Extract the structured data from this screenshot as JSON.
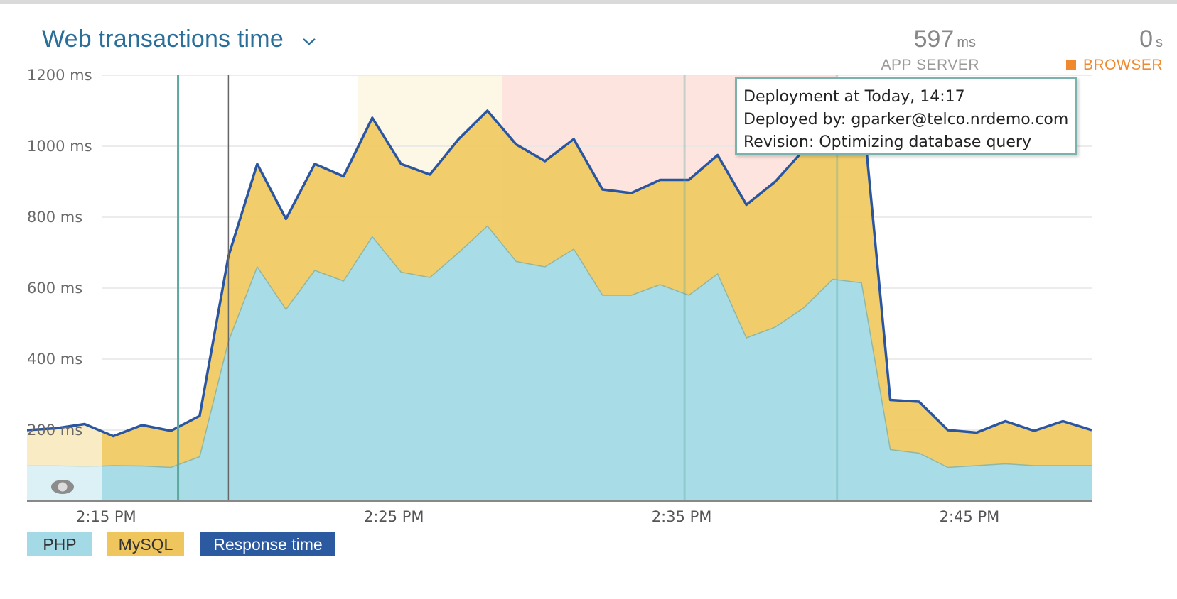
{
  "header": {
    "title": "Web transactions time",
    "app_server": {
      "value": "597",
      "unit": "ms",
      "label": "APP SERVER"
    },
    "browser": {
      "value": "0",
      "unit": "s",
      "label": "BROWSER"
    }
  },
  "tooltip": {
    "line1": "Deployment at Today, 14:17",
    "line2": "Deployed by: gparker@telco.nrdemo.com",
    "line3": "Revision: Optimizing database query"
  },
  "legend": {
    "php": "PHP",
    "mysql": "MySQL",
    "response": "Response time"
  },
  "colors": {
    "php": "#a8dce7",
    "mysql": "#f0ca64",
    "response": "#2a55a0",
    "highlight_yellow": "#fdf7e6",
    "highlight_red": "#fde4df",
    "deploy_marker": "#5ea8a0",
    "browser": "#f0892d",
    "title": "#2a6e9a"
  },
  "chart_data": {
    "type": "area",
    "ylim": [
      0,
      1200
    ],
    "y_ticks": [
      "1200 ms",
      "1000 ms",
      "800 ms",
      "600 ms",
      "400 ms",
      "200 ms"
    ],
    "y_tick_values": [
      1200,
      1000,
      800,
      600,
      400,
      200
    ],
    "x_tick_labels": [
      "2:15 PM",
      "2:25 PM",
      "2:35 PM",
      "2:45 PM"
    ],
    "x_tick_values": [
      15,
      25,
      35,
      45
    ],
    "x_start_min": 12.25,
    "x_end_min": 49.25,
    "x_step_min": 1,
    "series": [
      {
        "name": "PHP",
        "values": [
          100,
          100,
          97,
          100,
          99,
          95,
          125,
          450,
          660,
          540,
          650,
          620,
          745,
          645,
          630,
          700,
          775,
          675,
          660,
          710,
          580,
          580,
          610,
          580,
          640,
          460,
          490,
          545,
          625,
          615,
          145,
          135,
          95,
          100,
          105,
          100,
          100,
          100
        ]
      },
      {
        "name": "MySQL",
        "values": [
          100,
          105,
          120,
          83,
          115,
          103,
          115,
          240,
          290,
          255,
          300,
          295,
          335,
          305,
          290,
          320,
          325,
          330,
          298,
          310,
          298,
          288,
          295,
          325,
          335,
          375,
          410,
          445,
          460,
          520,
          140,
          145,
          105,
          93,
          120,
          98,
          125,
          100
        ]
      },
      {
        "name": "Response time",
        "values": [
          200,
          205,
          217,
          183,
          214,
          198,
          240,
          690,
          950,
          795,
          950,
          915,
          1080,
          950,
          920,
          1020,
          1100,
          1005,
          958,
          1020,
          878,
          868,
          905,
          905,
          975,
          835,
          900,
          990,
          1085,
          1135,
          285,
          280,
          200,
          193,
          225,
          198,
          225,
          200
        ]
      }
    ],
    "deployments": [
      {
        "x_min": 17.5
      },
      {
        "x_min": 35.1
      },
      {
        "x_min": 40.4
      }
    ],
    "cursor_x_min": 19.25,
    "highlight_yellow_range": [
      23.75,
      28.75
    ],
    "highlight_red_range": [
      28.75,
      40.4
    ]
  }
}
